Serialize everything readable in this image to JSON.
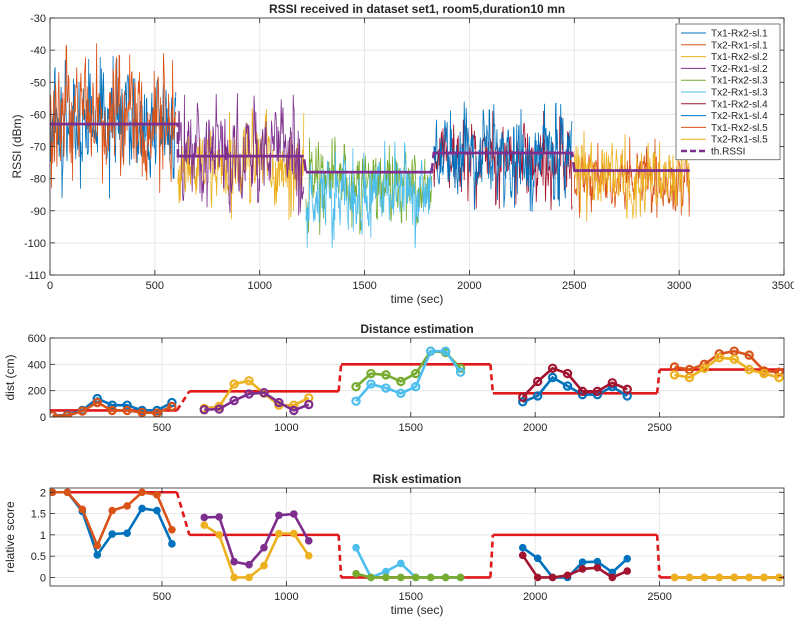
{
  "chart_data": [
    {
      "type": "line",
      "title": "RSSI received in dataset set1, room5,duration10 mn",
      "xlabel": "time (sec)",
      "ylabel": "RSSI (dBm)",
      "xlim": [
        0,
        3500
      ],
      "ylim": [
        -110,
        -30
      ],
      "xticks": [
        0,
        500,
        1000,
        1500,
        2000,
        2500,
        3000,
        3500
      ],
      "yticks": [
        -110,
        -100,
        -90,
        -80,
        -70,
        -60,
        -50,
        -40,
        -30
      ],
      "grid": true,
      "legend_position": "top-right",
      "noisy_series": [
        {
          "name": "Tx1-Rx2-sl.1",
          "color": "#0072BD",
          "x_range": [
            0,
            600
          ],
          "center": -63,
          "spread": 12
        },
        {
          "name": "Tx2-Rx1-sl.1",
          "color": "#D95319",
          "x_range": [
            0,
            600
          ],
          "center": -62,
          "spread": 13
        },
        {
          "name": "Tx1-Rx2-sl.2",
          "color": "#EDB120",
          "x_range": [
            610,
            1210
          ],
          "center": -75,
          "spread": 9
        },
        {
          "name": "Tx2-Rx1-sl.2",
          "color": "#7E2F8E",
          "x_range": [
            610,
            1210
          ],
          "center": -72,
          "spread": 10
        },
        {
          "name": "Tx1-Rx2-sl.3",
          "color": "#77AC30",
          "x_range": [
            1220,
            1820
          ],
          "center": -82,
          "spread": 8
        },
        {
          "name": "Tx2-Rx1-sl.3",
          "color": "#4DBEEE",
          "x_range": [
            1220,
            1820
          ],
          "center": -85,
          "spread": 9
        },
        {
          "name": "Tx1-Rx2-sl.4",
          "color": "#A2142F",
          "x_range": [
            1830,
            2490
          ],
          "center": -74,
          "spread": 8
        },
        {
          "name": "Tx2-Rx1-sl.4",
          "color": "#0072BD",
          "x_range": [
            1830,
            2490
          ],
          "center": -73,
          "spread": 9
        },
        {
          "name": "Tx1-Rx2-sl.5",
          "color": "#D95319",
          "x_range": [
            2500,
            3050
          ],
          "center": -80,
          "spread": 7
        },
        {
          "name": "Tx2-Rx1-sl.5",
          "color": "#EDB120",
          "x_range": [
            2500,
            3050
          ],
          "center": -79,
          "spread": 8
        }
      ],
      "threshold": {
        "name": "th.RSSI",
        "color": "#7E2F8E",
        "segments": [
          {
            "x": [
              0,
              610
            ],
            "y": -63
          },
          {
            "x": [
              610,
              1210
            ],
            "y": -73
          },
          {
            "x": [
              1220,
              1820
            ],
            "y": -78
          },
          {
            "x": [
              1830,
              2490
            ],
            "y": -72
          },
          {
            "x": [
              2500,
              3050
            ],
            "y": -77.5
          }
        ]
      }
    },
    {
      "type": "line",
      "title": "Distance estimation",
      "xlabel": "",
      "ylabel": "dist (cm)",
      "xlim": [
        50,
        3000
      ],
      "ylim": [
        0,
        600
      ],
      "xticks": [
        500,
        1000,
        1500,
        2000,
        2500
      ],
      "yticks": [
        0,
        200,
        400,
        600
      ],
      "grid": true,
      "series": [
        {
          "color": "#0072BD",
          "x": [
            60,
            120,
            180,
            240,
            300,
            360,
            420,
            480,
            540
          ],
          "y": [
            10,
            15,
            50,
            140,
            90,
            90,
            50,
            50,
            110
          ]
        },
        {
          "color": "#D95319",
          "x": [
            60,
            120,
            180,
            240,
            300,
            360,
            420,
            480,
            540
          ],
          "y": [
            10,
            10,
            45,
            110,
            50,
            50,
            35,
            30,
            80
          ]
        },
        {
          "color": "#EDB120",
          "x": [
            670,
            730,
            790,
            850,
            910,
            970,
            1030,
            1090
          ],
          "y": [
            65,
            80,
            250,
            275,
            180,
            90,
            90,
            145
          ]
        },
        {
          "color": "#7E2F8E",
          "x": [
            670,
            730,
            790,
            850,
            910,
            970,
            1030,
            1090
          ],
          "y": [
            55,
            60,
            125,
            175,
            185,
            110,
            50,
            95
          ]
        },
        {
          "color": "#77AC30",
          "x": [
            1280,
            1340,
            1400,
            1460,
            1520,
            1580,
            1640,
            1700
          ],
          "y": [
            230,
            330,
            320,
            270,
            330,
            500,
            490,
            370
          ]
        },
        {
          "color": "#4DBEEE",
          "x": [
            1280,
            1340,
            1400,
            1460,
            1520,
            1580,
            1640,
            1700
          ],
          "y": [
            120,
            250,
            220,
            180,
            230,
            500,
            500,
            340
          ]
        },
        {
          "color": "#0072BD",
          "x": [
            1950,
            2010,
            2070,
            2130,
            2190,
            2250,
            2310,
            2370
          ],
          "y": [
            115,
            160,
            300,
            235,
            170,
            170,
            230,
            160
          ]
        },
        {
          "color": "#A2142F",
          "x": [
            1950,
            2010,
            2070,
            2130,
            2190,
            2250,
            2310,
            2370
          ],
          "y": [
            150,
            270,
            370,
            330,
            195,
            195,
            260,
            210
          ]
        },
        {
          "color": "#D95319",
          "x": [
            2560,
            2620,
            2680,
            2740,
            2800,
            2860,
            2920,
            2980
          ],
          "y": [
            380,
            360,
            400,
            480,
            500,
            470,
            350,
            340
          ]
        },
        {
          "color": "#EDB120",
          "x": [
            2560,
            2620,
            2680,
            2740,
            2800,
            2860,
            2920,
            2980
          ],
          "y": [
            320,
            300,
            370,
            450,
            440,
            360,
            330,
            300
          ]
        }
      ],
      "threshold": {
        "color": "#E0191B",
        "x": [
          50,
          560,
          610,
          1210,
          1220,
          1820,
          1830,
          2490,
          2500,
          3000
        ],
        "y": [
          50,
          50,
          195,
          195,
          400,
          400,
          180,
          180,
          360,
          360
        ]
      }
    },
    {
      "type": "line",
      "title": "Risk estimation",
      "xlabel": "time (sec)",
      "ylabel": "relative score",
      "xlim": [
        50,
        3000
      ],
      "ylim": [
        -0.2,
        2.1
      ],
      "xticks": [
        500,
        1000,
        1500,
        2000,
        2500
      ],
      "yticks": [
        0,
        0.5,
        1,
        1.5,
        2
      ],
      "grid": true,
      "series": [
        {
          "color": "#0072BD",
          "x": [
            60,
            120,
            180,
            240,
            300,
            360,
            420,
            480,
            540
          ],
          "y": [
            2.0,
            2.0,
            1.55,
            0.53,
            1.02,
            1.04,
            1.62,
            1.57,
            0.79
          ]
        },
        {
          "color": "#D95319",
          "x": [
            60,
            120,
            180,
            240,
            300,
            360,
            420,
            480,
            540
          ],
          "y": [
            2.0,
            2.0,
            1.6,
            0.75,
            1.57,
            1.68,
            2.0,
            1.94,
            1.12
          ]
        },
        {
          "color": "#7E2F8E",
          "x": [
            670,
            730,
            790,
            850,
            910,
            970,
            1030,
            1090
          ],
          "y": [
            1.41,
            1.42,
            0.37,
            0.3,
            0.7,
            1.46,
            1.49,
            0.86
          ]
        },
        {
          "color": "#EDB120",
          "x": [
            670,
            730,
            790,
            850,
            910,
            970,
            1030,
            1090
          ],
          "y": [
            1.23,
            1.0,
            0.0,
            0.0,
            0.28,
            1.03,
            1.03,
            0.51
          ]
        },
        {
          "color": "#4DBEEE",
          "x": [
            1280,
            1340,
            1400,
            1460,
            1520,
            1580,
            1640,
            1700
          ],
          "y": [
            0.7,
            0.0,
            0.14,
            0.33,
            0.0,
            0.0,
            0.0,
            0.0
          ]
        },
        {
          "color": "#77AC30",
          "x": [
            1280,
            1340,
            1400,
            1460,
            1520,
            1580,
            1640,
            1700
          ],
          "y": [
            0.09,
            0.0,
            0.0,
            0.0,
            0.0,
            0.0,
            0.0,
            0.0
          ]
        },
        {
          "color": "#0072BD",
          "x": [
            1950,
            2010,
            2070,
            2130,
            2190,
            2250,
            2310,
            2370
          ],
          "y": [
            0.7,
            0.45,
            0.0,
            0.0,
            0.36,
            0.37,
            0.12,
            0.44
          ]
        },
        {
          "color": "#A2142F",
          "x": [
            1950,
            2010,
            2070,
            2130,
            2190,
            2250,
            2310,
            2370
          ],
          "y": [
            0.52,
            0.0,
            0.0,
            0.05,
            0.2,
            0.23,
            0.0,
            0.15
          ]
        },
        {
          "color": "#D95319",
          "x": [
            2560,
            2620,
            2680,
            2740,
            2800,
            2860,
            2920,
            2980
          ],
          "y": [
            0,
            0,
            0,
            0,
            0,
            0,
            0,
            0
          ]
        },
        {
          "color": "#EDB120",
          "x": [
            2560,
            2620,
            2680,
            2740,
            2800,
            2860,
            2920,
            2980
          ],
          "y": [
            0,
            0,
            0,
            0,
            0,
            0,
            0,
            0
          ]
        }
      ],
      "threshold": {
        "color": "#E0191B",
        "x": [
          50,
          560,
          610,
          1210,
          1220,
          1820,
          1830,
          2490,
          2500,
          3000
        ],
        "y": [
          2.0,
          2.0,
          1.0,
          1.0,
          0.0,
          0.0,
          1.0,
          1.0,
          0.0,
          0.0
        ]
      }
    }
  ]
}
